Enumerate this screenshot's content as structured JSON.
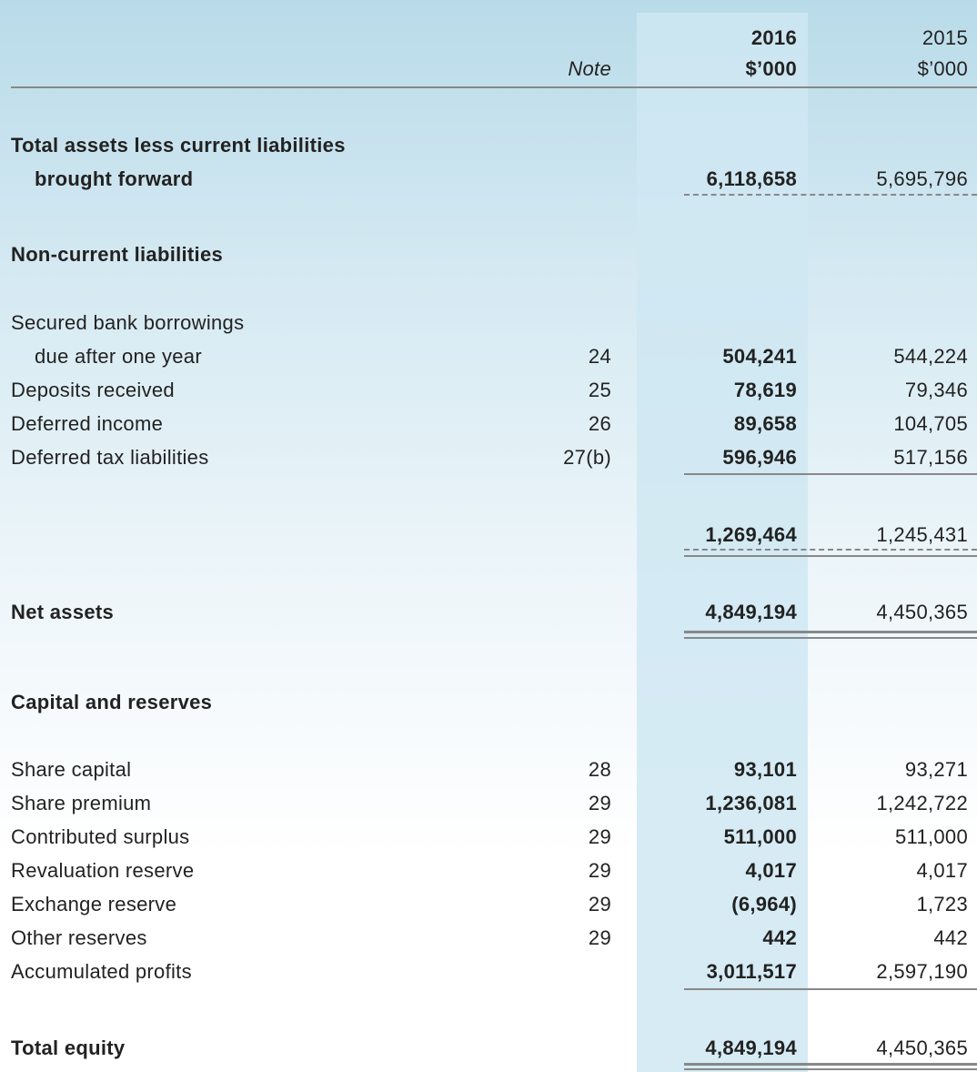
{
  "header": {
    "note": "Note",
    "year_2016": "2016",
    "unit_2016": "$’000",
    "year_2015": "2015",
    "unit_2015": "$’000"
  },
  "rows": [
    {
      "label": "Total assets less current liabilities"
    },
    {
      "label": "brought forward",
      "value_2016": "6,118,658",
      "value_2015": "5,695,796"
    },
    {
      "label": "Non-current liabilities"
    },
    {
      "label": "Secured bank borrowings"
    },
    {
      "label": "due after one year",
      "note": "24",
      "value_2016": "504,241",
      "value_2015": "544,224"
    },
    {
      "label": "Deposits received",
      "note": "25",
      "value_2016": "78,619",
      "value_2015": "79,346"
    },
    {
      "label": "Deferred income",
      "note": "26",
      "value_2016": "89,658",
      "value_2015": "104,705"
    },
    {
      "label": "Deferred tax liabilities",
      "note": "27(b)",
      "value_2016": "596,946",
      "value_2015": "517,156"
    },
    {
      "value_2016": "1,269,464",
      "value_2015": "1,245,431"
    },
    {
      "label": "Net assets",
      "value_2016": "4,849,194",
      "value_2015": "4,450,365"
    },
    {
      "label": "Capital and reserves"
    },
    {
      "label": "Share capital",
      "note": "28",
      "value_2016": "93,101",
      "value_2015": "93,271"
    },
    {
      "label": "Share premium",
      "note": "29",
      "value_2016": "1,236,081",
      "value_2015": "1,242,722"
    },
    {
      "label": "Contributed surplus",
      "note": "29",
      "value_2016": "511,000",
      "value_2015": "511,000"
    },
    {
      "label": "Revaluation reserve",
      "note": "29",
      "value_2016": "4,017",
      "value_2015": "4,017"
    },
    {
      "label": "Exchange reserve",
      "note": "29",
      "value_2016": "(6,964)",
      "value_2015": "1,723"
    },
    {
      "label": "Other reserves",
      "note": "29",
      "value_2016": "442",
      "value_2015": "442"
    },
    {
      "label": "Accumulated profits",
      "value_2016": "3,011,517",
      "value_2015": "2,597,190"
    },
    {
      "label": "Total equity",
      "value_2016": "4,849,194",
      "value_2015": "4,450,365"
    }
  ]
}
